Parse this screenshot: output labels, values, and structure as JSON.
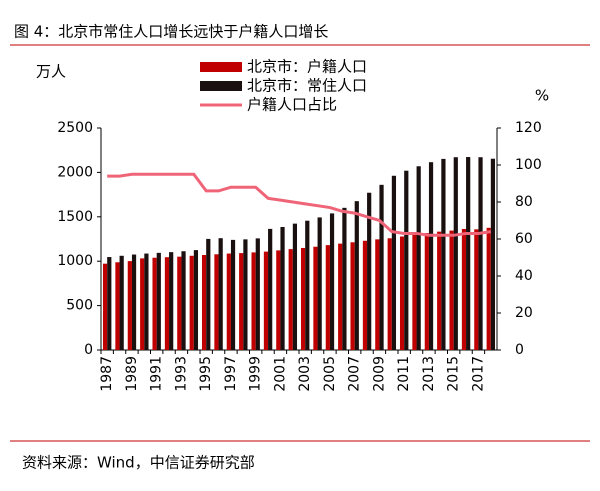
{
  "chart_data": {
    "type": "bar_line",
    "title": "图 4：北京市常住人口增长远快于户籍人口增长",
    "source": "资料来源：Wind，中信证券研究部",
    "y_label": "万人",
    "y2_label": "%",
    "categories": [
      "1987",
      null,
      "1989",
      null,
      "1991",
      null,
      "1993",
      null,
      "1995",
      null,
      "1997",
      null,
      "1999",
      null,
      "2001",
      null,
      "2003",
      null,
      "2005",
      null,
      "2007",
      null,
      "2009",
      null,
      "2011",
      null,
      "2013",
      null,
      "2015",
      null,
      "2017",
      null
    ],
    "series": [
      {
        "name": "北京市：户籍人口",
        "color": "#c00000",
        "kind": "bar",
        "values": [
          972,
          988,
          1001,
          1032,
          1039,
          1045,
          1051,
          1061,
          1070,
          1078,
          1086,
          1091,
          1099,
          1108,
          1122,
          1136,
          1149,
          1163,
          1181,
          1198,
          1213,
          1230,
          1246,
          1258,
          1278,
          1297,
          1316,
          1333,
          1345,
          1363,
          1359,
          1376
        ]
      },
      {
        "name": "北京市：常住人口",
        "color": "#1a1010",
        "kind": "bar",
        "values": [
          1047,
          1061,
          1075,
          1086,
          1094,
          1102,
          1112,
          1125,
          1251,
          1259,
          1240,
          1246,
          1257,
          1364,
          1385,
          1423,
          1456,
          1493,
          1538,
          1601,
          1676,
          1771,
          1860,
          1962,
          2019,
          2069,
          2115,
          2152,
          2171,
          2173,
          2171,
          2154
        ]
      },
      {
        "name": "户籍人口占比",
        "color": "#f06478",
        "kind": "line",
        "axis": "y2",
        "values": [
          94,
          94,
          95,
          95,
          95,
          95,
          95,
          95,
          86,
          86,
          88,
          88,
          88,
          82,
          81,
          80,
          79,
          78,
          77,
          75,
          74,
          72,
          70,
          64,
          63,
          63,
          62,
          62,
          62,
          63,
          63,
          64
        ]
      }
    ],
    "ylim": [
      0,
      2500
    ],
    "yticks": [
      0,
      500,
      1000,
      1500,
      2000,
      2500
    ],
    "y2lim": [
      0,
      120
    ],
    "y2ticks": [
      0,
      20,
      40,
      60,
      80,
      100,
      120
    ]
  }
}
